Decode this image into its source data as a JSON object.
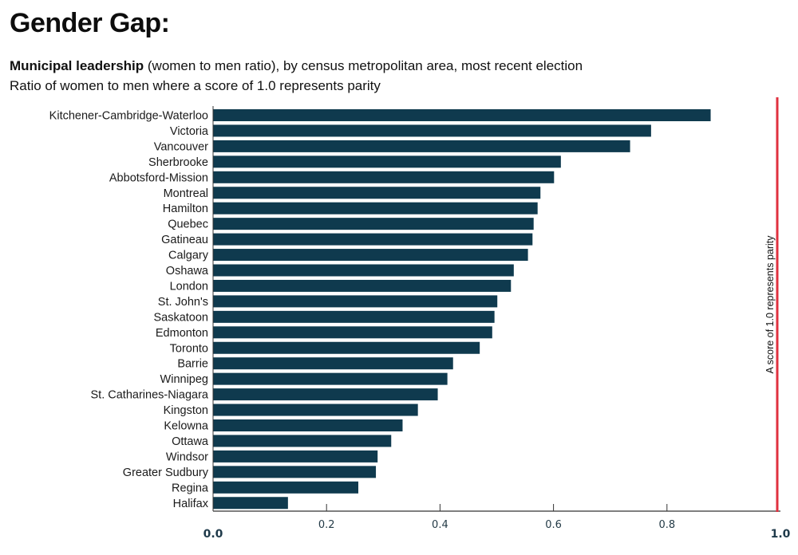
{
  "header": {
    "title": "Gender Gap:",
    "subtitle_bold": "Municipal leadership",
    "subtitle_rest": " (women to men ratio), by census metropolitan area, most recent election",
    "subtitle2": "Ratio of women to men where a score of 1.0 represents parity"
  },
  "colors": {
    "bar": "#0f3a4e",
    "parity_line": "#e0313f",
    "axis": "#333333"
  },
  "chart_data": {
    "type": "bar",
    "orientation": "horizontal",
    "title": "Gender Gap:",
    "subtitle": "Municipal leadership (women to men ratio), by census metropolitan area, most recent election",
    "xlabel": "",
    "ylabel": "",
    "xlim": [
      0,
      1.0
    ],
    "grid": false,
    "categories": [
      "Kitchener-Cambridge-Waterloo",
      "Victoria",
      "Vancouver",
      "Sherbrooke",
      "Abbotsford-Mission",
      "Montreal",
      "Hamilton",
      "Quebec",
      "Gatineau",
      "Calgary",
      "Oshawa",
      "London",
      "St. John's",
      "Saskatoon",
      "Edmonton",
      "Toronto",
      "Barrie",
      "Winnipeg",
      "St. Catharines-Niagara",
      "Kingston",
      "Kelowna",
      "Ottawa",
      "Windsor",
      "Greater Sudbury",
      "Regina",
      "Halifax"
    ],
    "values": [
      0.877,
      0.772,
      0.735,
      0.613,
      0.601,
      0.577,
      0.572,
      0.565,
      0.563,
      0.555,
      0.53,
      0.525,
      0.501,
      0.496,
      0.492,
      0.47,
      0.423,
      0.413,
      0.396,
      0.361,
      0.334,
      0.314,
      0.29,
      0.287,
      0.256,
      0.132
    ],
    "x_ticks": [
      {
        "value": 0.0,
        "label": "0.0",
        "emphasis": true
      },
      {
        "value": 0.2,
        "label": "0.2",
        "emphasis": false
      },
      {
        "value": 0.4,
        "label": "0.4",
        "emphasis": false
      },
      {
        "value": 0.6,
        "label": "0.6",
        "emphasis": false
      },
      {
        "value": 0.8,
        "label": "0.8",
        "emphasis": false
      },
      {
        "value": 1.0,
        "label": "1.0",
        "emphasis": true
      }
    ],
    "reference_line": {
      "value": 1.0,
      "label": "A score of 1.0 represents parity"
    }
  }
}
